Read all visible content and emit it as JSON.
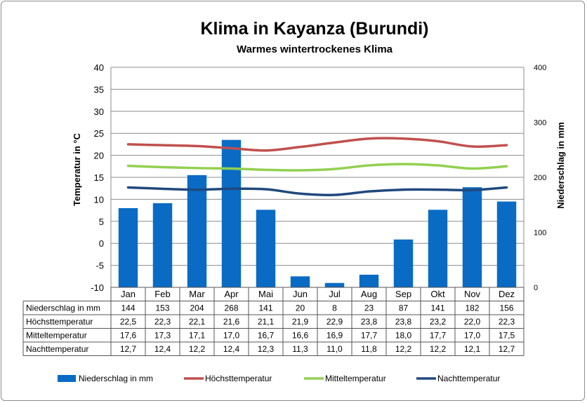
{
  "chart_data": {
    "type": "bar",
    "title": "Klima in Kayanza (Burundi)",
    "subtitle": "Warmes wintertrockenes Klima",
    "categories": [
      "Jan",
      "Feb",
      "Mar",
      "Apr",
      "Mai",
      "Jun",
      "Jul",
      "Aug",
      "Sep",
      "Okt",
      "Nov",
      "Dez"
    ],
    "y_left": {
      "label": "Temperatur in °C",
      "ylim": [
        -10,
        40
      ],
      "ticks": [
        -10,
        -5,
        0,
        5,
        10,
        15,
        20,
        25,
        30,
        35,
        40
      ]
    },
    "y_right": {
      "label": "Niederschlag in mm",
      "ylim": [
        0,
        400
      ],
      "ticks": [
        0,
        100,
        200,
        300,
        400
      ]
    },
    "grid": true,
    "legend_position": "bottom",
    "series": [
      {
        "name": "Niederschlag in mm",
        "type": "bar",
        "axis": "right",
        "color": "#0a6bc4",
        "values": [
          144,
          153,
          204,
          268,
          141,
          20,
          8,
          23,
          87,
          141,
          182,
          156
        ]
      },
      {
        "name": "Höchsttemperatur",
        "type": "line",
        "axis": "left",
        "color": "#c0504d",
        "values": [
          22.5,
          22.3,
          22.1,
          21.6,
          21.1,
          21.9,
          22.9,
          23.8,
          23.8,
          23.2,
          22.0,
          22.3
        ]
      },
      {
        "name": "Mitteltemperatur",
        "type": "line",
        "axis": "left",
        "color": "#92d050",
        "values": [
          17.6,
          17.3,
          17.1,
          17.0,
          16.7,
          16.6,
          16.9,
          17.7,
          18.0,
          17.7,
          17.0,
          17.5
        ]
      },
      {
        "name": "Nachttemperatur",
        "type": "line",
        "axis": "left",
        "color": "#1f497d",
        "values": [
          12.7,
          12.4,
          12.2,
          12.4,
          12.3,
          11.3,
          11.0,
          11.8,
          12.2,
          12.2,
          12.1,
          12.7
        ]
      }
    ],
    "table_rows": [
      {
        "label": "Niederschlag in mm",
        "cells": [
          "144",
          "153",
          "204",
          "268",
          "141",
          "20",
          "8",
          "23",
          "87",
          "141",
          "182",
          "156"
        ]
      },
      {
        "label": "Höchsttemperatur",
        "cells": [
          "22,5",
          "22,3",
          "22,1",
          "21,6",
          "21,1",
          "21,9",
          "22,9",
          "23,8",
          "23,8",
          "23,2",
          "22,0",
          "22,3"
        ]
      },
      {
        "label": "Mitteltemperatur",
        "cells": [
          "17,6",
          "17,3",
          "17,1",
          "17,0",
          "16,7",
          "16,6",
          "16,9",
          "17,7",
          "18,0",
          "17,7",
          "17,0",
          "17,5"
        ]
      },
      {
        "label": "Nachttemperatur",
        "cells": [
          "12,7",
          "12,4",
          "12,2",
          "12,4",
          "12,3",
          "11,3",
          "11,0",
          "11,8",
          "12,2",
          "12,2",
          "12,1",
          "12,7"
        ]
      }
    ]
  }
}
